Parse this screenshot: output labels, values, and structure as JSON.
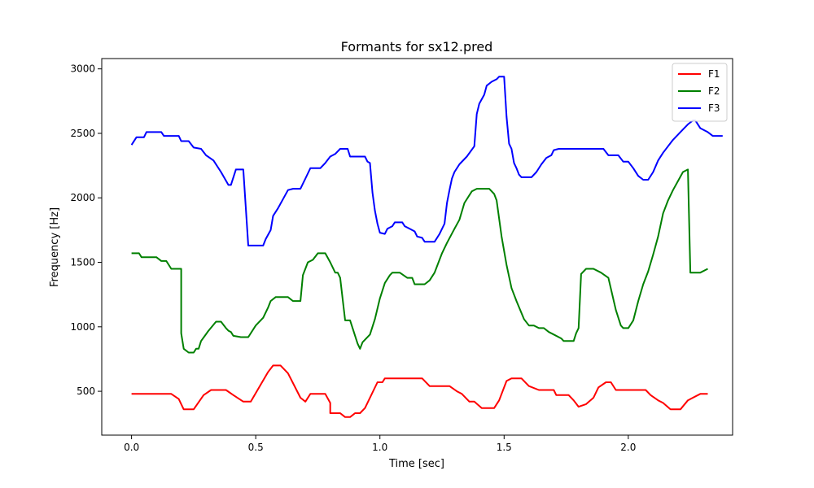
{
  "chart_data": {
    "type": "line",
    "title": "Formants for sx12.pred",
    "xlabel": "Time [sec]",
    "ylabel": "Frequency [Hz]",
    "xlim": [
      -0.12,
      2.42
    ],
    "ylim": [
      160,
      3080
    ],
    "xticks": [
      {
        "value": 0.0,
        "label": "0.0"
      },
      {
        "value": 0.5,
        "label": "0.5"
      },
      {
        "value": 1.0,
        "label": "1.0"
      },
      {
        "value": 1.5,
        "label": "1.5"
      },
      {
        "value": 2.0,
        "label": "2.0"
      }
    ],
    "yticks": [
      {
        "value": 500,
        "label": "500"
      },
      {
        "value": 1000,
        "label": "1000"
      },
      {
        "value": 1500,
        "label": "1500"
      },
      {
        "value": 2000,
        "label": "2000"
      },
      {
        "value": 2500,
        "label": "2500"
      },
      {
        "value": 3000,
        "label": "3000"
      }
    ],
    "grid": false,
    "legend_position": "top-right",
    "series": [
      {
        "name": "F1",
        "color": "#ff0000",
        "points": [
          [
            0.0,
            480
          ],
          [
            0.16,
            480
          ],
          [
            0.19,
            440
          ],
          [
            0.21,
            360
          ],
          [
            0.25,
            360
          ],
          [
            0.29,
            470
          ],
          [
            0.32,
            510
          ],
          [
            0.38,
            510
          ],
          [
            0.41,
            470
          ],
          [
            0.45,
            420
          ],
          [
            0.48,
            420
          ],
          [
            0.55,
            650
          ],
          [
            0.57,
            700
          ],
          [
            0.6,
            700
          ],
          [
            0.63,
            640
          ],
          [
            0.68,
            450
          ],
          [
            0.7,
            420
          ],
          [
            0.72,
            480
          ],
          [
            0.78,
            480
          ],
          [
            0.8,
            410
          ],
          [
            0.8,
            330
          ],
          [
            0.84,
            330
          ],
          [
            0.86,
            300
          ],
          [
            0.88,
            300
          ],
          [
            0.9,
            330
          ],
          [
            0.92,
            330
          ],
          [
            0.94,
            370
          ],
          [
            0.99,
            570
          ],
          [
            1.01,
            570
          ],
          [
            1.02,
            600
          ],
          [
            1.17,
            600
          ],
          [
            1.2,
            540
          ],
          [
            1.28,
            540
          ],
          [
            1.31,
            500
          ],
          [
            1.33,
            480
          ],
          [
            1.36,
            420
          ],
          [
            1.38,
            420
          ],
          [
            1.41,
            370
          ],
          [
            1.46,
            370
          ],
          [
            1.48,
            430
          ],
          [
            1.51,
            580
          ],
          [
            1.53,
            600
          ],
          [
            1.57,
            600
          ],
          [
            1.6,
            540
          ],
          [
            1.64,
            510
          ],
          [
            1.7,
            510
          ],
          [
            1.71,
            470
          ],
          [
            1.76,
            470
          ],
          [
            1.78,
            430
          ],
          [
            1.8,
            380
          ],
          [
            1.83,
            400
          ],
          [
            1.86,
            450
          ],
          [
            1.88,
            530
          ],
          [
            1.91,
            570
          ],
          [
            1.93,
            570
          ],
          [
            1.95,
            510
          ],
          [
            2.07,
            510
          ],
          [
            2.09,
            470
          ],
          [
            2.12,
            430
          ],
          [
            2.14,
            410
          ],
          [
            2.17,
            360
          ],
          [
            2.21,
            360
          ],
          [
            2.24,
            430
          ],
          [
            2.26,
            450
          ],
          [
            2.29,
            480
          ],
          [
            2.32,
            480
          ]
        ]
      },
      {
        "name": "F2",
        "color": "#008000",
        "points": [
          [
            0.0,
            1570
          ],
          [
            0.03,
            1570
          ],
          [
            0.04,
            1540
          ],
          [
            0.1,
            1540
          ],
          [
            0.12,
            1510
          ],
          [
            0.14,
            1510
          ],
          [
            0.16,
            1450
          ],
          [
            0.2,
            1450
          ],
          [
            0.2,
            950
          ],
          [
            0.21,
            830
          ],
          [
            0.23,
            800
          ],
          [
            0.25,
            800
          ],
          [
            0.26,
            830
          ],
          [
            0.27,
            830
          ],
          [
            0.28,
            890
          ],
          [
            0.31,
            970
          ],
          [
            0.34,
            1040
          ],
          [
            0.36,
            1040
          ],
          [
            0.38,
            990
          ],
          [
            0.39,
            970
          ],
          [
            0.4,
            960
          ],
          [
            0.41,
            930
          ],
          [
            0.44,
            920
          ],
          [
            0.47,
            920
          ],
          [
            0.5,
            1010
          ],
          [
            0.53,
            1070
          ],
          [
            0.55,
            1150
          ],
          [
            0.56,
            1200
          ],
          [
            0.58,
            1230
          ],
          [
            0.63,
            1230
          ],
          [
            0.65,
            1200
          ],
          [
            0.68,
            1200
          ],
          [
            0.69,
            1400
          ],
          [
            0.71,
            1500
          ],
          [
            0.73,
            1520
          ],
          [
            0.75,
            1570
          ],
          [
            0.78,
            1570
          ],
          [
            0.8,
            1500
          ],
          [
            0.82,
            1420
          ],
          [
            0.83,
            1420
          ],
          [
            0.84,
            1380
          ],
          [
            0.86,
            1050
          ],
          [
            0.88,
            1050
          ],
          [
            0.91,
            870
          ],
          [
            0.92,
            830
          ],
          [
            0.93,
            880
          ],
          [
            0.96,
            940
          ],
          [
            0.98,
            1060
          ],
          [
            1.0,
            1220
          ],
          [
            1.02,
            1340
          ],
          [
            1.04,
            1400
          ],
          [
            1.05,
            1420
          ],
          [
            1.08,
            1420
          ],
          [
            1.11,
            1380
          ],
          [
            1.13,
            1380
          ],
          [
            1.14,
            1330
          ],
          [
            1.18,
            1330
          ],
          [
            1.2,
            1360
          ],
          [
            1.22,
            1420
          ],
          [
            1.25,
            1570
          ],
          [
            1.27,
            1650
          ],
          [
            1.3,
            1760
          ],
          [
            1.32,
            1830
          ],
          [
            1.34,
            1960
          ],
          [
            1.37,
            2050
          ],
          [
            1.39,
            2070
          ],
          [
            1.44,
            2070
          ],
          [
            1.46,
            2030
          ],
          [
            1.47,
            1980
          ],
          [
            1.49,
            1700
          ],
          [
            1.51,
            1480
          ],
          [
            1.53,
            1300
          ],
          [
            1.55,
            1200
          ],
          [
            1.58,
            1060
          ],
          [
            1.6,
            1010
          ],
          [
            1.62,
            1010
          ],
          [
            1.64,
            990
          ],
          [
            1.66,
            990
          ],
          [
            1.68,
            960
          ],
          [
            1.7,
            940
          ],
          [
            1.73,
            910
          ],
          [
            1.74,
            890
          ],
          [
            1.78,
            890
          ],
          [
            1.79,
            950
          ],
          [
            1.8,
            990
          ],
          [
            1.81,
            1410
          ],
          [
            1.83,
            1450
          ],
          [
            1.86,
            1450
          ],
          [
            1.89,
            1420
          ],
          [
            1.92,
            1380
          ],
          [
            1.95,
            1130
          ],
          [
            1.97,
            1010
          ],
          [
            1.98,
            990
          ],
          [
            2.0,
            990
          ],
          [
            2.02,
            1050
          ],
          [
            2.04,
            1200
          ],
          [
            2.06,
            1330
          ],
          [
            2.08,
            1430
          ],
          [
            2.1,
            1560
          ],
          [
            2.12,
            1700
          ],
          [
            2.14,
            1880
          ],
          [
            2.16,
            1980
          ],
          [
            2.18,
            2060
          ],
          [
            2.2,
            2130
          ],
          [
            2.22,
            2200
          ],
          [
            2.24,
            2220
          ],
          [
            2.25,
            1420
          ],
          [
            2.29,
            1420
          ],
          [
            2.32,
            1450
          ]
        ]
      },
      {
        "name": "F3",
        "color": "#0000ff",
        "points": [
          [
            0.0,
            2410
          ],
          [
            0.02,
            2470
          ],
          [
            0.05,
            2470
          ],
          [
            0.06,
            2510
          ],
          [
            0.12,
            2510
          ],
          [
            0.13,
            2480
          ],
          [
            0.19,
            2480
          ],
          [
            0.2,
            2440
          ],
          [
            0.23,
            2440
          ],
          [
            0.25,
            2390
          ],
          [
            0.28,
            2380
          ],
          [
            0.3,
            2330
          ],
          [
            0.33,
            2290
          ],
          [
            0.36,
            2200
          ],
          [
            0.39,
            2100
          ],
          [
            0.4,
            2100
          ],
          [
            0.42,
            2220
          ],
          [
            0.45,
            2220
          ],
          [
            0.47,
            1630
          ],
          [
            0.53,
            1630
          ],
          [
            0.54,
            1680
          ],
          [
            0.56,
            1750
          ],
          [
            0.57,
            1860
          ],
          [
            0.59,
            1920
          ],
          [
            0.61,
            1990
          ],
          [
            0.63,
            2060
          ],
          [
            0.65,
            2070
          ],
          [
            0.68,
            2070
          ],
          [
            0.7,
            2150
          ],
          [
            0.72,
            2230
          ],
          [
            0.76,
            2230
          ],
          [
            0.78,
            2270
          ],
          [
            0.8,
            2320
          ],
          [
            0.82,
            2340
          ],
          [
            0.84,
            2380
          ],
          [
            0.87,
            2380
          ],
          [
            0.88,
            2320
          ],
          [
            0.94,
            2320
          ],
          [
            0.95,
            2280
          ],
          [
            0.96,
            2270
          ],
          [
            0.97,
            2040
          ],
          [
            0.98,
            1900
          ],
          [
            0.99,
            1800
          ],
          [
            1.0,
            1730
          ],
          [
            1.02,
            1720
          ],
          [
            1.03,
            1760
          ],
          [
            1.05,
            1780
          ],
          [
            1.06,
            1810
          ],
          [
            1.09,
            1810
          ],
          [
            1.1,
            1780
          ],
          [
            1.12,
            1760
          ],
          [
            1.14,
            1740
          ],
          [
            1.15,
            1700
          ],
          [
            1.17,
            1690
          ],
          [
            1.18,
            1660
          ],
          [
            1.22,
            1660
          ],
          [
            1.24,
            1720
          ],
          [
            1.26,
            1800
          ],
          [
            1.27,
            1960
          ],
          [
            1.28,
            2060
          ],
          [
            1.29,
            2150
          ],
          [
            1.3,
            2200
          ],
          [
            1.32,
            2260
          ],
          [
            1.35,
            2320
          ],
          [
            1.38,
            2400
          ],
          [
            1.39,
            2650
          ],
          [
            1.4,
            2730
          ],
          [
            1.42,
            2800
          ],
          [
            1.43,
            2870
          ],
          [
            1.45,
            2900
          ],
          [
            1.47,
            2920
          ],
          [
            1.48,
            2940
          ],
          [
            1.5,
            2940
          ],
          [
            1.51,
            2630
          ],
          [
            1.52,
            2420
          ],
          [
            1.53,
            2380
          ],
          [
            1.54,
            2270
          ],
          [
            1.55,
            2230
          ],
          [
            1.56,
            2180
          ],
          [
            1.57,
            2160
          ],
          [
            1.61,
            2160
          ],
          [
            1.63,
            2200
          ],
          [
            1.65,
            2260
          ],
          [
            1.67,
            2310
          ],
          [
            1.69,
            2330
          ],
          [
            1.7,
            2370
          ],
          [
            1.72,
            2380
          ],
          [
            1.9,
            2380
          ],
          [
            1.92,
            2330
          ],
          [
            1.96,
            2330
          ],
          [
            1.98,
            2280
          ],
          [
            2.0,
            2280
          ],
          [
            2.02,
            2230
          ],
          [
            2.04,
            2170
          ],
          [
            2.06,
            2140
          ],
          [
            2.08,
            2140
          ],
          [
            2.1,
            2200
          ],
          [
            2.12,
            2290
          ],
          [
            2.14,
            2350
          ],
          [
            2.16,
            2400
          ],
          [
            2.18,
            2450
          ],
          [
            2.2,
            2490
          ],
          [
            2.22,
            2530
          ],
          [
            2.24,
            2570
          ],
          [
            2.26,
            2600
          ],
          [
            2.27,
            2600
          ],
          [
            2.29,
            2540
          ],
          [
            2.32,
            2510
          ],
          [
            2.34,
            2480
          ],
          [
            2.38,
            2480
          ]
        ]
      }
    ]
  }
}
